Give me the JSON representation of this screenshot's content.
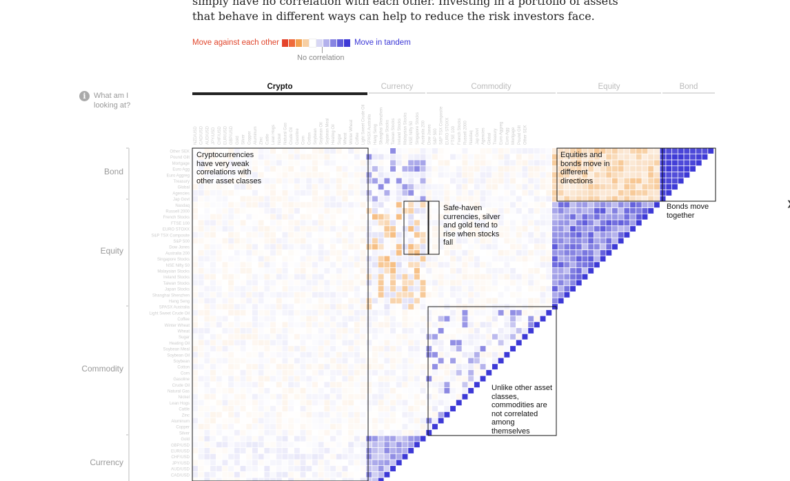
{
  "intro": {
    "text": "simply have no correlation with each other. Investing in a portfolio of assets that behave in different ways can help to reduce the risk investors face."
  },
  "legend": {
    "against_label": "Move against each other",
    "tandem_label": "Move in tandem",
    "no_corr_label": "No correlation",
    "swatches": [
      "#e4442b",
      "#ef6a3b",
      "#f3a04f",
      "#f7cfa3",
      "#ffffff",
      "#d8d7f4",
      "#b3b1ec",
      "#8784e2",
      "#5f5cdb",
      "#3d39d6"
    ]
  },
  "help": {
    "icon": "info-icon",
    "text": "What am I looking at?"
  },
  "tabs": [
    {
      "label": "Crypto",
      "active": true
    },
    {
      "label": "Currency",
      "active": false
    },
    {
      "label": "Commodity",
      "active": false
    },
    {
      "label": "Equity",
      "active": false
    },
    {
      "label": "Bond",
      "active": false
    }
  ],
  "side_labels": {
    "bond": "Bond",
    "equity": "Equity",
    "commodity": "Commodity",
    "currency": "Currency"
  },
  "annotations": {
    "crypto": "Cryptocurrencies have very weak correlations with other asset classes",
    "safe_haven": "Safe-haven currencies, silver and gold tend to rise when stocks fall",
    "equities_bonds": "Equities and bonds move in different directions",
    "bonds": "Bonds move together",
    "commodities": "Unlike other asset classes, commodities are not correlated among themselves"
  },
  "chart_data": {
    "type": "heatmap",
    "groups": [
      {
        "name": "Crypto",
        "count": 29
      },
      {
        "name": "Currency",
        "count": 10
      },
      {
        "name": "Commodity",
        "count": 21
      },
      {
        "name": "Equity",
        "count": 18
      },
      {
        "name": "Bond",
        "count": 9
      }
    ],
    "value_range": [
      -1,
      1
    ],
    "row_labels": [
      "Other SEK",
      "Pound Gilt",
      "Mortgage",
      "Euro Agg",
      "Euro Aggreg",
      "Treasury",
      "Global",
      "Agencies",
      "Jap Govt",
      "Nasdaq",
      "Russell 2000",
      "French Stocks",
      "FTSE 100",
      "EURO STOXX",
      "S&P TSX Composite",
      "S&P 500",
      "Dow Jones",
      "Australia 200",
      "Singapore Stocks",
      "NSE Nifty 50",
      "Malaysian Stocks",
      "Ireland Stocks",
      "Taiwan Stocks",
      "Japan Stocks",
      "Shanghai Shenzhen",
      "Hang Seng",
      "SPASX Australia",
      "Light Sweet Crude Oil",
      "Coffee",
      "Winter Wheat",
      "Wheat",
      "Sugar",
      "Heating Oil",
      "Soybean Meal",
      "Soybean Oil",
      "Soybean",
      "Cotton",
      "Corn",
      "Gasoline",
      "Crude Oil",
      "Natural Gas",
      "Nickel",
      "Lean Hogs",
      "Cattle",
      "Zinc",
      "Aluminum",
      "Copper",
      "Silver",
      "Gold",
      "GBP/USD",
      "EUR/USD",
      "CHF/USD",
      "JPY/USD",
      "AUD/USD",
      "CAD/USD",
      "NZD/USD"
    ],
    "notes": "Pairwise correlation matrix (lower triangle) between crypto, currency, commodity, equity and bond assets; negative values in orange, positive in purple."
  }
}
